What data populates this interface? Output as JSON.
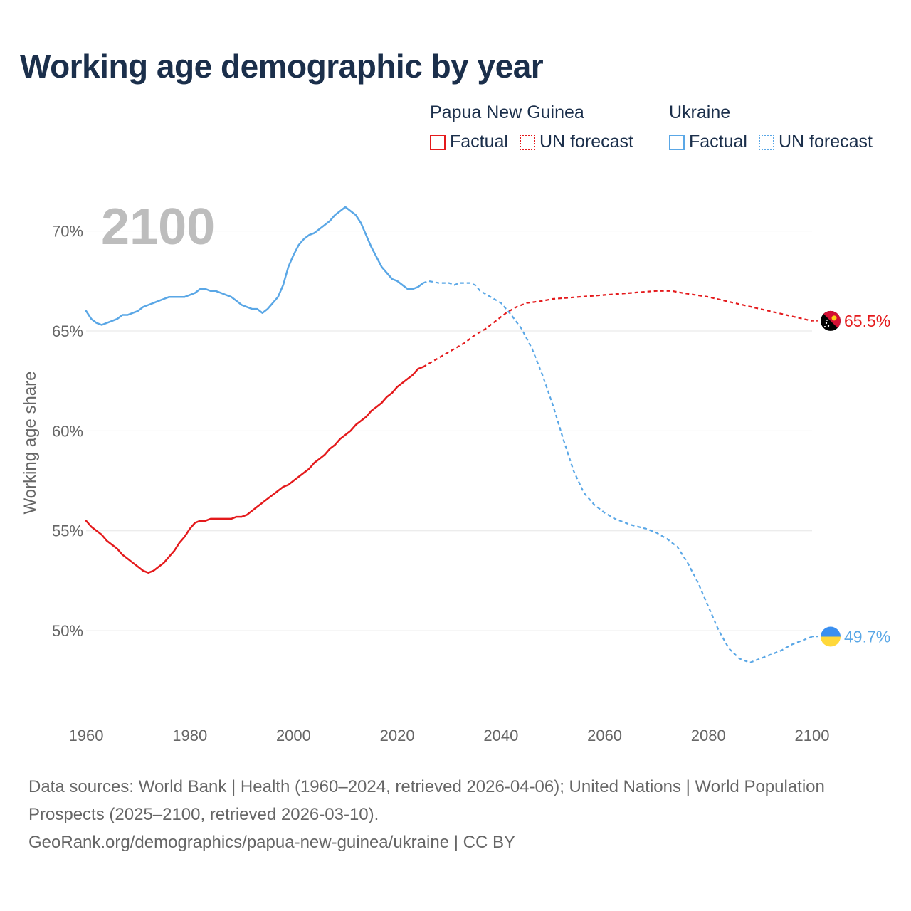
{
  "title": "Working age demographic by year",
  "year_display": "2100",
  "legend": {
    "groups": [
      {
        "name": "Papua New Guinea",
        "color": "#e41a1c",
        "factual_label": "Factual",
        "forecast_label": "UN forecast"
      },
      {
        "name": "Ukraine",
        "color": "#5aa7e6",
        "factual_label": "Factual",
        "forecast_label": "UN forecast"
      }
    ]
  },
  "footer": {
    "sources": "Data sources: World Bank | Health (1960–2024, retrieved 2026-04-06); United Nations | World Population Prospects (2025–2100, retrieved 2026-03-10).",
    "link": "GeoRank.org/demographics/papua-new-guinea/ukraine | CC BY"
  },
  "chart_data": {
    "type": "line",
    "title": "Working age demographic by year",
    "xlabel": "",
    "ylabel": "Working age share",
    "xlim": [
      1960,
      2100
    ],
    "ylim": [
      46.3,
      72.3
    ],
    "x_ticks": [
      1960,
      1980,
      2000,
      2020,
      2040,
      2060,
      2080,
      2100
    ],
    "x_tick_labels": [
      "1960",
      "1980",
      "2000",
      "2020",
      "2040",
      "2060",
      "2080",
      "2100"
    ],
    "y_ticks": [
      50,
      55,
      60,
      65,
      70
    ],
    "y_tick_labels": [
      "50%",
      "55%",
      "60%",
      "65%",
      "70%"
    ],
    "grid": true,
    "series": [
      {
        "name": "Papua New Guinea",
        "color": "#e41a1c",
        "end_label": "65.5%",
        "end_icon": "papua-new-guinea-flag-icon",
        "factual": [
          [
            1960,
            55.5
          ],
          [
            1961,
            55.2
          ],
          [
            1962,
            55.0
          ],
          [
            1963,
            54.8
          ],
          [
            1964,
            54.5
          ],
          [
            1965,
            54.3
          ],
          [
            1966,
            54.1
          ],
          [
            1967,
            53.8
          ],
          [
            1968,
            53.6
          ],
          [
            1969,
            53.4
          ],
          [
            1970,
            53.2
          ],
          [
            1971,
            53.0
          ],
          [
            1972,
            52.9
          ],
          [
            1973,
            53.0
          ],
          [
            1974,
            53.2
          ],
          [
            1975,
            53.4
          ],
          [
            1976,
            53.7
          ],
          [
            1977,
            54.0
          ],
          [
            1978,
            54.4
          ],
          [
            1979,
            54.7
          ],
          [
            1980,
            55.1
          ],
          [
            1981,
            55.4
          ],
          [
            1982,
            55.5
          ],
          [
            1983,
            55.5
          ],
          [
            1984,
            55.6
          ],
          [
            1985,
            55.6
          ],
          [
            1986,
            55.6
          ],
          [
            1987,
            55.6
          ],
          [
            1988,
            55.6
          ],
          [
            1989,
            55.7
          ],
          [
            1990,
            55.7
          ],
          [
            1991,
            55.8
          ],
          [
            1992,
            56.0
          ],
          [
            1993,
            56.2
          ],
          [
            1994,
            56.4
          ],
          [
            1995,
            56.6
          ],
          [
            1996,
            56.8
          ],
          [
            1997,
            57.0
          ],
          [
            1998,
            57.2
          ],
          [
            1999,
            57.3
          ],
          [
            2000,
            57.5
          ],
          [
            2001,
            57.7
          ],
          [
            2002,
            57.9
          ],
          [
            2003,
            58.1
          ],
          [
            2004,
            58.4
          ],
          [
            2005,
            58.6
          ],
          [
            2006,
            58.8
          ],
          [
            2007,
            59.1
          ],
          [
            2008,
            59.3
          ],
          [
            2009,
            59.6
          ],
          [
            2010,
            59.8
          ],
          [
            2011,
            60.0
          ],
          [
            2012,
            60.3
          ],
          [
            2013,
            60.5
          ],
          [
            2014,
            60.7
          ],
          [
            2015,
            61.0
          ],
          [
            2016,
            61.2
          ],
          [
            2017,
            61.4
          ],
          [
            2018,
            61.7
          ],
          [
            2019,
            61.9
          ],
          [
            2020,
            62.2
          ],
          [
            2021,
            62.4
          ],
          [
            2022,
            62.6
          ],
          [
            2023,
            62.8
          ],
          [
            2024,
            63.1
          ],
          [
            2025,
            63.2
          ]
        ],
        "forecast": [
          [
            2025,
            63.2
          ],
          [
            2027,
            63.5
          ],
          [
            2029,
            63.8
          ],
          [
            2031,
            64.1
          ],
          [
            2033,
            64.4
          ],
          [
            2035,
            64.8
          ],
          [
            2037,
            65.1
          ],
          [
            2039,
            65.5
          ],
          [
            2041,
            65.9
          ],
          [
            2043,
            66.2
          ],
          [
            2045,
            66.4
          ],
          [
            2048,
            66.5
          ],
          [
            2050,
            66.6
          ],
          [
            2055,
            66.7
          ],
          [
            2060,
            66.8
          ],
          [
            2065,
            66.9
          ],
          [
            2070,
            67.0
          ],
          [
            2073,
            67.0
          ],
          [
            2075,
            66.9
          ],
          [
            2080,
            66.7
          ],
          [
            2085,
            66.4
          ],
          [
            2090,
            66.1
          ],
          [
            2095,
            65.8
          ],
          [
            2100,
            65.5
          ]
        ]
      },
      {
        "name": "Ukraine",
        "color": "#5aa7e6",
        "end_label": "49.7%",
        "end_icon": "ukraine-flag-icon",
        "factual": [
          [
            1960,
            66.0
          ],
          [
            1961,
            65.6
          ],
          [
            1962,
            65.4
          ],
          [
            1963,
            65.3
          ],
          [
            1964,
            65.4
          ],
          [
            1965,
            65.5
          ],
          [
            1966,
            65.6
          ],
          [
            1967,
            65.8
          ],
          [
            1968,
            65.8
          ],
          [
            1969,
            65.9
          ],
          [
            1970,
            66.0
          ],
          [
            1971,
            66.2
          ],
          [
            1972,
            66.3
          ],
          [
            1973,
            66.4
          ],
          [
            1974,
            66.5
          ],
          [
            1975,
            66.6
          ],
          [
            1976,
            66.7
          ],
          [
            1977,
            66.7
          ],
          [
            1978,
            66.7
          ],
          [
            1979,
            66.7
          ],
          [
            1980,
            66.8
          ],
          [
            1981,
            66.9
          ],
          [
            1982,
            67.1
          ],
          [
            1983,
            67.1
          ],
          [
            1984,
            67.0
          ],
          [
            1985,
            67.0
          ],
          [
            1986,
            66.9
          ],
          [
            1987,
            66.8
          ],
          [
            1988,
            66.7
          ],
          [
            1989,
            66.5
          ],
          [
            1990,
            66.3
          ],
          [
            1991,
            66.2
          ],
          [
            1992,
            66.1
          ],
          [
            1993,
            66.1
          ],
          [
            1994,
            65.9
          ],
          [
            1995,
            66.1
          ],
          [
            1996,
            66.4
          ],
          [
            1997,
            66.7
          ],
          [
            1998,
            67.3
          ],
          [
            1999,
            68.2
          ],
          [
            2000,
            68.8
          ],
          [
            2001,
            69.3
          ],
          [
            2002,
            69.6
          ],
          [
            2003,
            69.8
          ],
          [
            2004,
            69.9
          ],
          [
            2005,
            70.1
          ],
          [
            2006,
            70.3
          ],
          [
            2007,
            70.5
          ],
          [
            2008,
            70.8
          ],
          [
            2009,
            71.0
          ],
          [
            2010,
            71.2
          ],
          [
            2011,
            71.0
          ],
          [
            2012,
            70.8
          ],
          [
            2013,
            70.4
          ],
          [
            2014,
            69.8
          ],
          [
            2015,
            69.2
          ],
          [
            2016,
            68.7
          ],
          [
            2017,
            68.2
          ],
          [
            2018,
            67.9
          ],
          [
            2019,
            67.6
          ],
          [
            2020,
            67.5
          ],
          [
            2021,
            67.3
          ],
          [
            2022,
            67.1
          ],
          [
            2023,
            67.1
          ],
          [
            2024,
            67.2
          ],
          [
            2025,
            67.4
          ]
        ],
        "forecast": [
          [
            2025,
            67.4
          ],
          [
            2026,
            67.5
          ],
          [
            2028,
            67.4
          ],
          [
            2030,
            67.4
          ],
          [
            2031,
            67.3
          ],
          [
            2032,
            67.4
          ],
          [
            2034,
            67.4
          ],
          [
            2035,
            67.3
          ],
          [
            2036,
            67.0
          ],
          [
            2038,
            66.7
          ],
          [
            2040,
            66.4
          ],
          [
            2042,
            65.8
          ],
          [
            2044,
            65.1
          ],
          [
            2046,
            64.1
          ],
          [
            2048,
            62.8
          ],
          [
            2050,
            61.3
          ],
          [
            2052,
            59.6
          ],
          [
            2054,
            58.0
          ],
          [
            2056,
            56.9
          ],
          [
            2058,
            56.3
          ],
          [
            2060,
            55.9
          ],
          [
            2062,
            55.6
          ],
          [
            2065,
            55.3
          ],
          [
            2068,
            55.1
          ],
          [
            2070,
            54.9
          ],
          [
            2072,
            54.6
          ],
          [
            2074,
            54.2
          ],
          [
            2076,
            53.4
          ],
          [
            2078,
            52.4
          ],
          [
            2080,
            51.2
          ],
          [
            2082,
            50.0
          ],
          [
            2084,
            49.1
          ],
          [
            2086,
            48.6
          ],
          [
            2088,
            48.4
          ],
          [
            2090,
            48.6
          ],
          [
            2092,
            48.8
          ],
          [
            2094,
            49.0
          ],
          [
            2096,
            49.3
          ],
          [
            2098,
            49.5
          ],
          [
            2100,
            49.7
          ]
        ]
      }
    ]
  }
}
